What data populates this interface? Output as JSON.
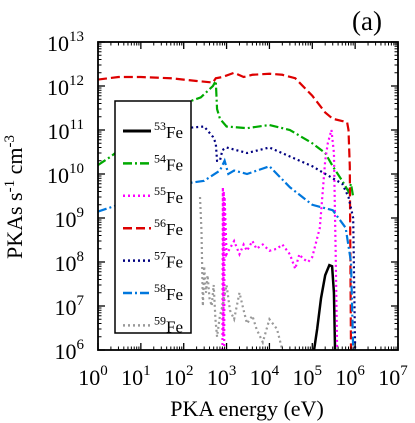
{
  "chart_data": {
    "type": "line",
    "panel_label": "(a)",
    "xlabel": "PKA energy (eV)",
    "ylabel": "PKAs s-1 cm-3",
    "x_scale": "log",
    "y_scale": "log",
    "xlim": [
      1,
      10000000
    ],
    "ylim": [
      1000000,
      10000000000000
    ],
    "x_ticks": [
      {
        "base": "10",
        "exp": "0",
        "value": 1
      },
      {
        "base": "10",
        "exp": "1",
        "value": 10
      },
      {
        "base": "10",
        "exp": "2",
        "value": 100
      },
      {
        "base": "10",
        "exp": "3",
        "value": 1000
      },
      {
        "base": "10",
        "exp": "4",
        "value": 10000
      },
      {
        "base": "10",
        "exp": "5",
        "value": 100000
      },
      {
        "base": "10",
        "exp": "6",
        "value": 1000000
      },
      {
        "base": "10",
        "exp": "7",
        "value": 10000000
      }
    ],
    "y_ticks": [
      {
        "base": "10",
        "exp": "6",
        "value": 1000000
      },
      {
        "base": "10",
        "exp": "7",
        "value": 10000000
      },
      {
        "base": "10",
        "exp": "8",
        "value": 100000000
      },
      {
        "base": "10",
        "exp": "9",
        "value": 1000000000
      },
      {
        "base": "10",
        "exp": "10",
        "value": 10000000000
      },
      {
        "base": "10",
        "exp": "11",
        "value": 100000000000
      },
      {
        "base": "10",
        "exp": "12",
        "value": 1000000000000
      },
      {
        "base": "10",
        "exp": "13",
        "value": 10000000000000
      }
    ],
    "legend_position": "left",
    "series": [
      {
        "name": "53Fe",
        "mass": "53",
        "element": "Fe",
        "color": "#000000",
        "dash": "solid",
        "points": [
          [
            110000,
            1000000.0
          ],
          [
            130000,
            3000000.0
          ],
          [
            160000,
            15000000.0
          ],
          [
            200000,
            50000000.0
          ],
          [
            250000,
            85000000.0
          ],
          [
            290000,
            80000000.0
          ],
          [
            320000,
            20000000.0
          ],
          [
            340000,
            1000000.0
          ]
        ]
      },
      {
        "name": "54Fe",
        "mass": "54",
        "element": "Fe",
        "color": "#00aa00",
        "dash": "dashdot",
        "points": [
          [
            1,
            16000000000.0
          ],
          [
            2,
            25000000000.0
          ],
          [
            5,
            50000000000.0
          ],
          [
            10,
            80000000000.0
          ],
          [
            30,
            200000000000.0
          ],
          [
            100,
            400000000000.0
          ],
          [
            250,
            550000000000.0
          ],
          [
            480,
            1000000000000.0
          ],
          [
            560,
            1300000000000.0
          ],
          [
            600,
            300000000000.0
          ],
          [
            700,
            180000000000.0
          ],
          [
            1000,
            120000000000.0
          ],
          [
            3000,
            110000000000.0
          ],
          [
            10000,
            130000000000.0
          ],
          [
            30000,
            100000000000.0
          ],
          [
            100000,
            50000000000.0
          ],
          [
            200000,
            30000000000.0
          ],
          [
            300000,
            15000000000.0
          ],
          [
            500000,
            7000000000.0
          ],
          [
            700000,
            4000000000.0
          ],
          [
            800000,
            6000000000.0
          ],
          [
            900000,
            3000000000.0
          ]
        ]
      },
      {
        "name": "55Fe",
        "mass": "55",
        "element": "Fe",
        "color": "#ff00ff",
        "dash": "dotted",
        "points": [
          [
            800,
            1000000.0
          ],
          [
            820,
            5000000000.0
          ],
          [
            840,
            2000000.0
          ],
          [
            860,
            4000000000.0
          ],
          [
            880,
            1000000.0
          ],
          [
            900,
            3000000000.0
          ],
          [
            1000,
            150000000.0
          ],
          [
            1500,
            300000000.0
          ],
          [
            2000,
            150000000.0
          ],
          [
            2500,
            250000000.0
          ],
          [
            3000,
            180000000.0
          ],
          [
            4000,
            300000000.0
          ],
          [
            5000,
            200000000.0
          ],
          [
            7000,
            250000000.0
          ],
          [
            10000,
            180000000.0
          ],
          [
            15000,
            200000000.0
          ],
          [
            20000,
            250000000.0
          ],
          [
            30000,
            150000000.0
          ],
          [
            40000,
            70000000.0
          ],
          [
            50000,
            150000000.0
          ],
          [
            60000,
            120000000.0
          ],
          [
            80000,
            100000000.0
          ],
          [
            100000,
            130000000.0
          ],
          [
            150000,
            600000000.0
          ],
          [
            200000,
            20000000000.0
          ],
          [
            230000,
            50000000000.0
          ],
          [
            280000,
            100000000000.0
          ],
          [
            320000,
            30000000000.0
          ],
          [
            350000,
            200000000.0
          ],
          [
            380000,
            1000000.0
          ]
        ]
      },
      {
        "name": "56Fe",
        "mass": "56",
        "element": "Fe",
        "color": "#dd0000",
        "dash": "dashed",
        "points": [
          [
            1,
            1400000000000.0
          ],
          [
            3,
            1600000000000.0
          ],
          [
            10,
            1600000000000.0
          ],
          [
            50,
            1500000000000.0
          ],
          [
            200,
            1300000000000.0
          ],
          [
            480,
            1200000000000.0
          ],
          [
            560,
            1500000000000.0
          ],
          [
            800,
            1600000000000.0
          ],
          [
            1500,
            2000000000000.0
          ],
          [
            2500,
            1600000000000.0
          ],
          [
            4000,
            1800000000000.0
          ],
          [
            10000,
            1900000000000.0
          ],
          [
            20000,
            1800000000000.0
          ],
          [
            40000,
            1500000000000.0
          ],
          [
            100000,
            600000000000.0
          ],
          [
            200000,
            250000000000.0
          ],
          [
            300000,
            180000000000.0
          ],
          [
            500000,
            160000000000.0
          ],
          [
            650000,
            150000000000.0
          ],
          [
            700000,
            100000000000.0
          ],
          [
            750000,
            15000000000.0
          ],
          [
            800000,
            1000000.0
          ]
        ]
      },
      {
        "name": "57Fe",
        "mass": "57",
        "element": "Fe",
        "color": "#000080",
        "dash": "dotted",
        "points": [
          [
            30,
            100000000000.0
          ],
          [
            100,
            110000000000.0
          ],
          [
            300,
            120000000000.0
          ],
          [
            480,
            70000000000.0
          ],
          [
            560,
            50000000000.0
          ],
          [
            600,
            20000000000.0
          ],
          [
            700,
            20000000000.0
          ],
          [
            800,
            35000000000.0
          ],
          [
            1000,
            40000000000.0
          ],
          [
            3000,
            30000000000.0
          ],
          [
            10000,
            40000000000.0
          ],
          [
            30000,
            25000000000.0
          ],
          [
            100000,
            15000000000.0
          ],
          [
            300000,
            8000000000.0
          ],
          [
            500000,
            6000000000.0
          ],
          [
            700000,
            3000000000.0
          ],
          [
            900000,
            1000000000.0
          ],
          [
            1000000,
            1000000.0
          ]
        ]
      },
      {
        "name": "58Fe",
        "mass": "58",
        "element": "Fe",
        "color": "#0077dd",
        "dash": "dashdot",
        "points": [
          [
            1,
            1400000000.0
          ],
          [
            3,
            2000000000.0
          ],
          [
            10,
            3000000000.0
          ],
          [
            30,
            4000000000.0
          ],
          [
            100,
            6000000000.0
          ],
          [
            300,
            7000000000.0
          ],
          [
            700,
            12000000000.0
          ],
          [
            900,
            20000000000.0
          ],
          [
            1100,
            10000000000.0
          ],
          [
            1500,
            12000000000.0
          ],
          [
            3000,
            10000000000.0
          ],
          [
            10000,
            15000000000.0
          ],
          [
            30000,
            5000000000.0
          ],
          [
            100000,
            2000000000.0
          ],
          [
            300000,
            1500000000.0
          ],
          [
            600000,
            600000000.0
          ],
          [
            800000,
            100000000.0
          ],
          [
            900000,
            1000000.0
          ]
        ]
      },
      {
        "name": "59Fe",
        "mass": "59",
        "element": "Fe",
        "color": "#999999",
        "dash": "dotted",
        "points": [
          [
            240,
            3000000000.0
          ],
          [
            260,
            500000000.0
          ],
          [
            280,
            10000000.0
          ],
          [
            300,
            80000000.0
          ],
          [
            330,
            20000000.0
          ],
          [
            360,
            50000000.0
          ],
          [
            400,
            15000000.0
          ],
          [
            450,
            10000000.0
          ],
          [
            500,
            30000000.0
          ],
          [
            550,
            5000000.0
          ],
          [
            600,
            2000000.0
          ],
          [
            700,
            6000000.0
          ],
          [
            800,
            10000000.0
          ],
          [
            1000,
            30000000.0
          ],
          [
            1200,
            8000000.0
          ],
          [
            1500,
            5000000.0
          ],
          [
            2000,
            20000000.0
          ],
          [
            2500,
            8000000.0
          ],
          [
            3000,
            4000000.0
          ],
          [
            4000,
            6000000.0
          ],
          [
            5000,
            3000000.0
          ],
          [
            7000,
            1500000.0
          ],
          [
            10000,
            5000000.0
          ],
          [
            15000,
            3000000.0
          ],
          [
            20000,
            1000000.0
          ]
        ]
      }
    ]
  }
}
